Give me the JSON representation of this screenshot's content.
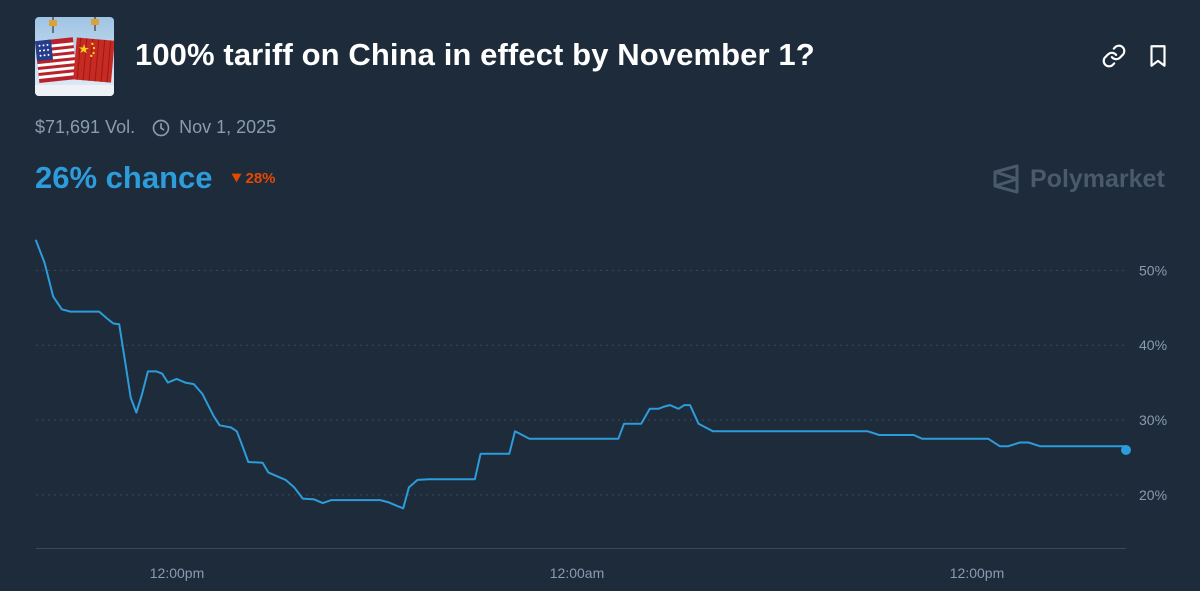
{
  "market": {
    "title": "100% tariff on China in effect by November 1?",
    "volume": "$71,691 Vol.",
    "end_date": "Nov 1, 2025",
    "chance": "26% chance",
    "change": "28%",
    "change_direction": "down",
    "brand": "Polymarket"
  },
  "header_icons": [
    "link-icon",
    "bookmark-icon"
  ],
  "colors": {
    "background": "#1d2b3a",
    "line": "#2d9cdb",
    "change_down": "#e64800",
    "muted_text": "#8b9bb0",
    "grid": "#3a4858"
  },
  "chart_data": {
    "type": "line",
    "x_tick_labels": [
      "12:00pm",
      "12:00am",
      "12:00pm"
    ],
    "y_tick_labels": [
      "50%",
      "40%",
      "30%",
      "20%"
    ],
    "y_ticks": [
      50,
      40,
      30,
      20
    ],
    "ylim": [
      12.9,
      55.4
    ],
    "xlim": [
      0,
      38
    ],
    "grid": true,
    "series": [
      {
        "values": [
          [
            0.0,
            54.0
          ],
          [
            0.3,
            51.0
          ],
          [
            0.6,
            46.5
          ],
          [
            0.9,
            44.8
          ],
          [
            1.2,
            44.5
          ],
          [
            2.2,
            44.5
          ],
          [
            2.5,
            43.5
          ],
          [
            2.6,
            43.2
          ],
          [
            2.7,
            42.9
          ],
          [
            2.9,
            42.8
          ],
          [
            3.1,
            38.0
          ],
          [
            3.3,
            33.0
          ],
          [
            3.5,
            31.0
          ],
          [
            3.7,
            33.5
          ],
          [
            3.9,
            36.5
          ],
          [
            4.2,
            36.5
          ],
          [
            4.4,
            36.2
          ],
          [
            4.6,
            35.0
          ],
          [
            4.9,
            35.5
          ],
          [
            5.2,
            35.0
          ],
          [
            5.5,
            34.8
          ],
          [
            5.8,
            33.5
          ],
          [
            6.2,
            30.5
          ],
          [
            6.4,
            29.3
          ],
          [
            6.8,
            29.0
          ],
          [
            7.0,
            28.5
          ],
          [
            7.2,
            26.5
          ],
          [
            7.4,
            24.4
          ],
          [
            7.9,
            24.3
          ],
          [
            8.1,
            23.0
          ],
          [
            8.4,
            22.5
          ],
          [
            8.7,
            22.0
          ],
          [
            9.0,
            21.0
          ],
          [
            9.3,
            19.5
          ],
          [
            9.7,
            19.4
          ],
          [
            10.0,
            18.9
          ],
          [
            10.3,
            19.3
          ],
          [
            10.6,
            19.3
          ],
          [
            11.0,
            19.3
          ],
          [
            11.5,
            19.3
          ],
          [
            12.0,
            19.3
          ],
          [
            12.3,
            19.0
          ],
          [
            12.6,
            18.5
          ],
          [
            12.8,
            18.2
          ],
          [
            13.0,
            21.0
          ],
          [
            13.3,
            22.0
          ],
          [
            13.7,
            22.1
          ],
          [
            14.3,
            22.1
          ],
          [
            15.0,
            22.1
          ],
          [
            15.3,
            22.1
          ],
          [
            15.5,
            25.5
          ],
          [
            16.5,
            25.5
          ],
          [
            16.7,
            28.5
          ],
          [
            17.2,
            27.5
          ],
          [
            17.6,
            27.5
          ],
          [
            18.0,
            27.5
          ],
          [
            19.5,
            27.5
          ],
          [
            20.3,
            27.5
          ],
          [
            20.5,
            29.5
          ],
          [
            21.1,
            29.5
          ],
          [
            21.4,
            31.5
          ],
          [
            21.7,
            31.5
          ],
          [
            21.9,
            31.8
          ],
          [
            22.1,
            32.0
          ],
          [
            22.4,
            31.5
          ],
          [
            22.6,
            32.0
          ],
          [
            22.8,
            32.0
          ],
          [
            23.1,
            29.5
          ],
          [
            23.6,
            28.5
          ],
          [
            24.0,
            28.5
          ],
          [
            29.0,
            28.5
          ],
          [
            29.4,
            28.0
          ],
          [
            30.6,
            28.0
          ],
          [
            30.9,
            27.5
          ],
          [
            33.2,
            27.5
          ],
          [
            33.6,
            26.5
          ],
          [
            33.9,
            26.5
          ],
          [
            34.3,
            27.0
          ],
          [
            34.6,
            27.0
          ],
          [
            35.0,
            26.5
          ],
          [
            38.0,
            26.5
          ],
          [
            38.0,
            26.0
          ]
        ]
      }
    ]
  }
}
